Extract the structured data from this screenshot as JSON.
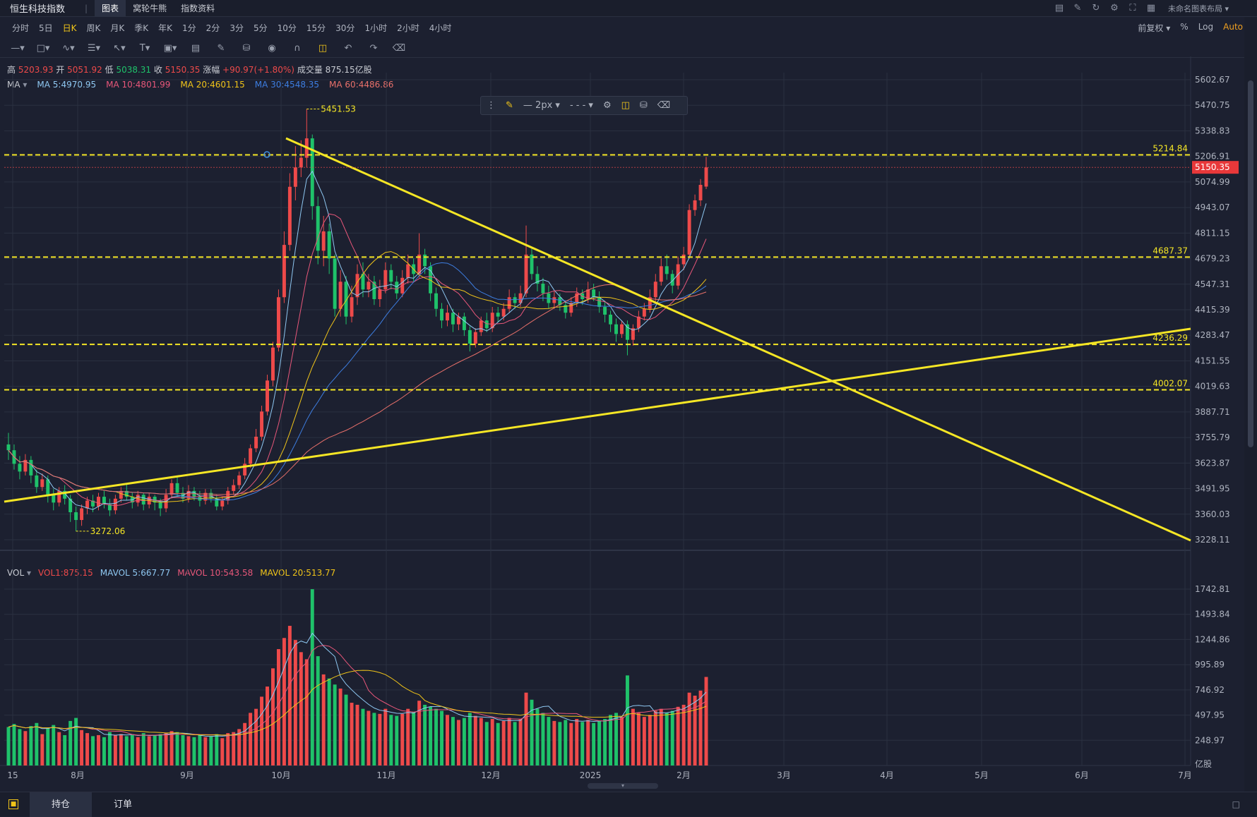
{
  "header": {
    "title": "恒生科技指数",
    "tabs": [
      "图表",
      "窝轮牛熊",
      "指数资料"
    ],
    "active_tab": 0,
    "layout_label": "未命名图表布局",
    "icons": [
      "chart-icon",
      "edit-icon",
      "refresh-icon",
      "settings-icon",
      "fullscreen-icon",
      "grid-icon"
    ]
  },
  "periods": {
    "items": [
      "分时",
      "5日",
      "日K",
      "周K",
      "月K",
      "季K",
      "年K",
      "1分",
      "2分",
      "3分",
      "5分",
      "10分",
      "15分",
      "30分",
      "1小时",
      "2小时",
      "4小时"
    ],
    "active": 2,
    "adjust": "前复权",
    "pct": "%",
    "log": "Log",
    "auto": "Auto"
  },
  "ohlc": {
    "high_label": "高",
    "high": "5203.93",
    "open_label": "开",
    "open": "5051.92",
    "low_label": "低",
    "low": "5038.31",
    "close_label": "收",
    "close": "5150.35",
    "change_label": "涨幅",
    "change": "+90.97(+1.80%)",
    "vol_label": "成交量",
    "vol": "875.15亿股"
  },
  "ma_line": {
    "label": "MA",
    "items": [
      {
        "text": "MA 5:4970.95",
        "color": "#8fc8f2"
      },
      {
        "text": "MA 10:4801.99",
        "color": "#e8577a"
      },
      {
        "text": "MA 20:4601.15",
        "color": "#f0c419"
      },
      {
        "text": "MA 30:4548.35",
        "color": "#3d7de0"
      },
      {
        "text": "MA 60:4486.86",
        "color": "#e8706a"
      }
    ]
  },
  "vol_line": {
    "label": "VOL",
    "items": [
      {
        "text": "VOL1:875.15",
        "color": "#ee4a4a"
      },
      {
        "text": "MAVOL 5:667.77",
        "color": "#8fc8f2"
      },
      {
        "text": "MAVOL 10:543.58",
        "color": "#e8577a"
      },
      {
        "text": "MAVOL 20:513.77",
        "color": "#f0c419"
      }
    ]
  },
  "draw_toolbar": {
    "width_label": "2px"
  },
  "price_axis": [
    "5602.67",
    "5470.75",
    "5338.83",
    "5206.91",
    "5074.99",
    "4943.07",
    "4811.15",
    "4679.23",
    "4547.31",
    "4415.39",
    "4283.47",
    "4151.55",
    "4019.63",
    "3887.71",
    "3755.79",
    "3623.87",
    "3491.95",
    "3360.03",
    "3228.11"
  ],
  "vol_axis": [
    "1742.81",
    "1493.84",
    "1244.86",
    "995.89",
    "746.92",
    "497.95",
    "248.97"
  ],
  "vol_unit": "亿股",
  "time_axis": [
    "15",
    "8月",
    "9月",
    "10月",
    "11月",
    "12月",
    "2025",
    "2月",
    "3月",
    "4月",
    "5月",
    "6月",
    "7月"
  ],
  "current_price": "5150.35",
  "horizontal_lines": [
    {
      "label": "5214.84",
      "value": 5214.84
    },
    {
      "label": "4687.37",
      "value": 4687.37
    },
    {
      "label": "4236.29",
      "value": 4236.29
    },
    {
      "label": "4002.07",
      "value": 4002.07
    }
  ],
  "annotations": {
    "high_mark": "5451.53",
    "low_mark": "3272.06"
  },
  "colors": {
    "up": "#ee4a4a",
    "down": "#1fc26a",
    "drawing": "#f5e625",
    "bg": "#1c2030",
    "grid": "#2a3040"
  },
  "bottom": {
    "tabs": [
      "持仓",
      "订单"
    ],
    "active": 0
  },
  "chart_data": {
    "type": "line",
    "title": "恒生科技指数",
    "price_range": [
      3228.11,
      5602.67
    ],
    "volume_range": [
      0,
      1742.81
    ],
    "series": [
      {
        "name": "MA 5",
        "last": 4970.95
      },
      {
        "name": "MA 10",
        "last": 4801.99
      },
      {
        "name": "MA 20",
        "last": 4601.15
      },
      {
        "name": "MA 30",
        "last": 4548.35
      },
      {
        "name": "MA 60",
        "last": 4486.86
      }
    ],
    "candles": [
      {
        "o": 3720,
        "c": 3690,
        "h": 3780,
        "l": 3640,
        "v": 380
      },
      {
        "o": 3690,
        "c": 3620,
        "h": 3720,
        "l": 3590,
        "v": 410
      },
      {
        "o": 3620,
        "c": 3580,
        "h": 3660,
        "l": 3540,
        "v": 360
      },
      {
        "o": 3580,
        "c": 3640,
        "h": 3670,
        "l": 3560,
        "v": 340
      },
      {
        "o": 3640,
        "c": 3560,
        "h": 3660,
        "l": 3520,
        "v": 390
      },
      {
        "o": 3560,
        "c": 3500,
        "h": 3590,
        "l": 3470,
        "v": 420
      },
      {
        "o": 3500,
        "c": 3540,
        "h": 3570,
        "l": 3480,
        "v": 310
      },
      {
        "o": 3540,
        "c": 3460,
        "h": 3560,
        "l": 3420,
        "v": 370
      },
      {
        "o": 3460,
        "c": 3420,
        "h": 3490,
        "l": 3380,
        "v": 400
      },
      {
        "o": 3420,
        "c": 3480,
        "h": 3500,
        "l": 3400,
        "v": 330
      },
      {
        "o": 3480,
        "c": 3440,
        "h": 3510,
        "l": 3410,
        "v": 300
      },
      {
        "o": 3440,
        "c": 3370,
        "h": 3460,
        "l": 3320,
        "v": 440
      },
      {
        "o": 3370,
        "c": 3330,
        "h": 3400,
        "l": 3272,
        "v": 470
      },
      {
        "o": 3330,
        "c": 3390,
        "h": 3410,
        "l": 3300,
        "v": 350
      },
      {
        "o": 3390,
        "c": 3430,
        "h": 3450,
        "l": 3360,
        "v": 320
      },
      {
        "o": 3430,
        "c": 3400,
        "h": 3460,
        "l": 3370,
        "v": 290
      },
      {
        "o": 3400,
        "c": 3450,
        "h": 3470,
        "l": 3380,
        "v": 300
      },
      {
        "o": 3450,
        "c": 3410,
        "h": 3480,
        "l": 3390,
        "v": 280
      },
      {
        "o": 3410,
        "c": 3380,
        "h": 3440,
        "l": 3350,
        "v": 330
      },
      {
        "o": 3380,
        "c": 3440,
        "h": 3460,
        "l": 3360,
        "v": 300
      },
      {
        "o": 3440,
        "c": 3480,
        "h": 3500,
        "l": 3420,
        "v": 310
      },
      {
        "o": 3480,
        "c": 3450,
        "h": 3520,
        "l": 3430,
        "v": 290
      },
      {
        "o": 3450,
        "c": 3420,
        "h": 3470,
        "l": 3390,
        "v": 300
      },
      {
        "o": 3420,
        "c": 3460,
        "h": 3480,
        "l": 3400,
        "v": 280
      },
      {
        "o": 3460,
        "c": 3410,
        "h": 3470,
        "l": 3380,
        "v": 320
      },
      {
        "o": 3410,
        "c": 3450,
        "h": 3470,
        "l": 3390,
        "v": 290
      },
      {
        "o": 3450,
        "c": 3420,
        "h": 3460,
        "l": 3380,
        "v": 300
      },
      {
        "o": 3420,
        "c": 3390,
        "h": 3440,
        "l": 3350,
        "v": 310
      },
      {
        "o": 3390,
        "c": 3460,
        "h": 3490,
        "l": 3370,
        "v": 320
      },
      {
        "o": 3460,
        "c": 3520,
        "h": 3540,
        "l": 3440,
        "v": 340
      },
      {
        "o": 3520,
        "c": 3470,
        "h": 3550,
        "l": 3450,
        "v": 330
      },
      {
        "o": 3470,
        "c": 3440,
        "h": 3500,
        "l": 3420,
        "v": 300
      },
      {
        "o": 3440,
        "c": 3480,
        "h": 3510,
        "l": 3420,
        "v": 290
      },
      {
        "o": 3480,
        "c": 3450,
        "h": 3500,
        "l": 3430,
        "v": 280
      },
      {
        "o": 3450,
        "c": 3430,
        "h": 3480,
        "l": 3400,
        "v": 300
      },
      {
        "o": 3430,
        "c": 3470,
        "h": 3490,
        "l": 3410,
        "v": 280
      },
      {
        "o": 3470,
        "c": 3440,
        "h": 3490,
        "l": 3420,
        "v": 290
      },
      {
        "o": 3440,
        "c": 3400,
        "h": 3460,
        "l": 3380,
        "v": 310
      },
      {
        "o": 3400,
        "c": 3430,
        "h": 3450,
        "l": 3380,
        "v": 270
      },
      {
        "o": 3430,
        "c": 3480,
        "h": 3500,
        "l": 3410,
        "v": 320
      },
      {
        "o": 3480,
        "c": 3510,
        "h": 3540,
        "l": 3460,
        "v": 330
      },
      {
        "o": 3510,
        "c": 3560,
        "h": 3580,
        "l": 3490,
        "v": 360
      },
      {
        "o": 3560,
        "c": 3620,
        "h": 3650,
        "l": 3540,
        "v": 420
      },
      {
        "o": 3620,
        "c": 3700,
        "h": 3720,
        "l": 3600,
        "v": 520
      },
      {
        "o": 3700,
        "c": 3760,
        "h": 3800,
        "l": 3680,
        "v": 560
      },
      {
        "o": 3760,
        "c": 3890,
        "h": 3920,
        "l": 3740,
        "v": 680
      },
      {
        "o": 3890,
        "c": 4050,
        "h": 4080,
        "l": 3870,
        "v": 780
      },
      {
        "o": 4050,
        "c": 4220,
        "h": 4250,
        "l": 4020,
        "v": 960
      },
      {
        "o": 4220,
        "c": 4480,
        "h": 4520,
        "l": 4200,
        "v": 1150
      },
      {
        "o": 4480,
        "c": 4750,
        "h": 4820,
        "l": 4450,
        "v": 1260
      },
      {
        "o": 4750,
        "c": 5050,
        "h": 5120,
        "l": 4720,
        "v": 1380
      },
      {
        "o": 5050,
        "c": 5150,
        "h": 5260,
        "l": 4980,
        "v": 1240
      },
      {
        "o": 5150,
        "c": 5200,
        "h": 5290,
        "l": 5100,
        "v": 1120
      },
      {
        "o": 5200,
        "c": 5300,
        "h": 5451,
        "l": 5150,
        "v": 1050
      },
      {
        "o": 5300,
        "c": 4950,
        "h": 5320,
        "l": 4880,
        "v": 1742
      },
      {
        "o": 4950,
        "c": 4720,
        "h": 5000,
        "l": 4650,
        "v": 1080
      },
      {
        "o": 4720,
        "c": 4820,
        "h": 4900,
        "l": 4640,
        "v": 900
      },
      {
        "o": 4820,
        "c": 4680,
        "h": 4860,
        "l": 4600,
        "v": 860
      },
      {
        "o": 4680,
        "c": 4420,
        "h": 4700,
        "l": 4380,
        "v": 800
      },
      {
        "o": 4420,
        "c": 4560,
        "h": 4620,
        "l": 4380,
        "v": 760
      },
      {
        "o": 4560,
        "c": 4380,
        "h": 4590,
        "l": 4340,
        "v": 700
      },
      {
        "o": 4380,
        "c": 4480,
        "h": 4540,
        "l": 4350,
        "v": 620
      },
      {
        "o": 4480,
        "c": 4600,
        "h": 4650,
        "l": 4440,
        "v": 600
      },
      {
        "o": 4600,
        "c": 4520,
        "h": 4660,
        "l": 4480,
        "v": 560
      },
      {
        "o": 4520,
        "c": 4560,
        "h": 4600,
        "l": 4480,
        "v": 540
      },
      {
        "o": 4560,
        "c": 4470,
        "h": 4590,
        "l": 4440,
        "v": 520
      },
      {
        "o": 4470,
        "c": 4520,
        "h": 4570,
        "l": 4430,
        "v": 510
      },
      {
        "o": 4520,
        "c": 4620,
        "h": 4660,
        "l": 4500,
        "v": 560
      },
      {
        "o": 4620,
        "c": 4560,
        "h": 4650,
        "l": 4520,
        "v": 500
      },
      {
        "o": 4560,
        "c": 4500,
        "h": 4590,
        "l": 4470,
        "v": 490
      },
      {
        "o": 4500,
        "c": 4580,
        "h": 4620,
        "l": 4480,
        "v": 510
      },
      {
        "o": 4580,
        "c": 4650,
        "h": 4700,
        "l": 4550,
        "v": 560
      },
      {
        "o": 4650,
        "c": 4600,
        "h": 4680,
        "l": 4560,
        "v": 530
      },
      {
        "o": 4600,
        "c": 4700,
        "h": 4810,
        "l": 4580,
        "v": 640
      },
      {
        "o": 4700,
        "c": 4640,
        "h": 4730,
        "l": 4600,
        "v": 600
      },
      {
        "o": 4640,
        "c": 4500,
        "h": 4660,
        "l": 4460,
        "v": 580
      },
      {
        "o": 4500,
        "c": 4420,
        "h": 4530,
        "l": 4380,
        "v": 560
      },
      {
        "o": 4420,
        "c": 4360,
        "h": 4450,
        "l": 4320,
        "v": 540
      },
      {
        "o": 4360,
        "c": 4400,
        "h": 4440,
        "l": 4330,
        "v": 500
      },
      {
        "o": 4400,
        "c": 4340,
        "h": 4420,
        "l": 4300,
        "v": 480
      },
      {
        "o": 4340,
        "c": 4380,
        "h": 4400,
        "l": 4310,
        "v": 450
      },
      {
        "o": 4380,
        "c": 4310,
        "h": 4400,
        "l": 4280,
        "v": 470
      },
      {
        "o": 4310,
        "c": 4240,
        "h": 4330,
        "l": 4200,
        "v": 520
      },
      {
        "o": 4240,
        "c": 4300,
        "h": 4320,
        "l": 4220,
        "v": 490
      },
      {
        "o": 4300,
        "c": 4360,
        "h": 4380,
        "l": 4280,
        "v": 470
      },
      {
        "o": 4360,
        "c": 4320,
        "h": 4400,
        "l": 4300,
        "v": 430
      },
      {
        "o": 4320,
        "c": 4400,
        "h": 4430,
        "l": 4300,
        "v": 460
      },
      {
        "o": 4400,
        "c": 4380,
        "h": 4430,
        "l": 4350,
        "v": 420
      },
      {
        "o": 4380,
        "c": 4420,
        "h": 4450,
        "l": 4360,
        "v": 440
      },
      {
        "o": 4420,
        "c": 4480,
        "h": 4520,
        "l": 4400,
        "v": 470
      },
      {
        "o": 4480,
        "c": 4450,
        "h": 4500,
        "l": 4420,
        "v": 430
      },
      {
        "o": 4450,
        "c": 4500,
        "h": 4540,
        "l": 4430,
        "v": 460
      },
      {
        "o": 4500,
        "c": 4700,
        "h": 4850,
        "l": 4480,
        "v": 720
      },
      {
        "o": 4700,
        "c": 4600,
        "h": 4730,
        "l": 4570,
        "v": 650
      },
      {
        "o": 4600,
        "c": 4550,
        "h": 4640,
        "l": 4510,
        "v": 560
      },
      {
        "o": 4550,
        "c": 4500,
        "h": 4580,
        "l": 4460,
        "v": 520
      },
      {
        "o": 4500,
        "c": 4450,
        "h": 4540,
        "l": 4420,
        "v": 480
      },
      {
        "o": 4450,
        "c": 4480,
        "h": 4510,
        "l": 4420,
        "v": 440
      },
      {
        "o": 4480,
        "c": 4440,
        "h": 4500,
        "l": 4410,
        "v": 430
      },
      {
        "o": 4440,
        "c": 4400,
        "h": 4460,
        "l": 4370,
        "v": 450
      },
      {
        "o": 4400,
        "c": 4450,
        "h": 4480,
        "l": 4380,
        "v": 420
      },
      {
        "o": 4450,
        "c": 4500,
        "h": 4530,
        "l": 4430,
        "v": 460
      },
      {
        "o": 4500,
        "c": 4470,
        "h": 4520,
        "l": 4440,
        "v": 430
      },
      {
        "o": 4470,
        "c": 4520,
        "h": 4560,
        "l": 4450,
        "v": 450
      },
      {
        "o": 4520,
        "c": 4480,
        "h": 4550,
        "l": 4460,
        "v": 420
      },
      {
        "o": 4480,
        "c": 4430,
        "h": 4510,
        "l": 4400,
        "v": 440
      },
      {
        "o": 4430,
        "c": 4390,
        "h": 4460,
        "l": 4350,
        "v": 460
      },
      {
        "o": 4390,
        "c": 4340,
        "h": 4410,
        "l": 4300,
        "v": 500
      },
      {
        "o": 4340,
        "c": 4290,
        "h": 4370,
        "l": 4250,
        "v": 520
      },
      {
        "o": 4290,
        "c": 4340,
        "h": 4360,
        "l": 4270,
        "v": 480
      },
      {
        "o": 4340,
        "c": 4260,
        "h": 4360,
        "l": 4180,
        "v": 890
      },
      {
        "o": 4260,
        "c": 4320,
        "h": 4340,
        "l": 4230,
        "v": 560
      },
      {
        "o": 4320,
        "c": 4380,
        "h": 4410,
        "l": 4300,
        "v": 520
      },
      {
        "o": 4380,
        "c": 4420,
        "h": 4450,
        "l": 4360,
        "v": 480
      },
      {
        "o": 4420,
        "c": 4480,
        "h": 4520,
        "l": 4400,
        "v": 500
      },
      {
        "o": 4480,
        "c": 4560,
        "h": 4600,
        "l": 4460,
        "v": 540
      },
      {
        "o": 4560,
        "c": 4640,
        "h": 4680,
        "l": 4540,
        "v": 560
      },
      {
        "o": 4640,
        "c": 4600,
        "h": 4700,
        "l": 4570,
        "v": 520
      },
      {
        "o": 4600,
        "c": 4540,
        "h": 4620,
        "l": 4500,
        "v": 540
      },
      {
        "o": 4540,
        "c": 4650,
        "h": 4690,
        "l": 4520,
        "v": 580
      },
      {
        "o": 4650,
        "c": 4700,
        "h": 4740,
        "l": 4620,
        "v": 600
      },
      {
        "o": 4700,
        "c": 4930,
        "h": 4960,
        "l": 4680,
        "v": 720
      },
      {
        "o": 4930,
        "c": 4980,
        "h": 5010,
        "l": 4900,
        "v": 690
      },
      {
        "o": 4980,
        "c": 5060,
        "h": 5090,
        "l": 4950,
        "v": 740
      },
      {
        "o": 5051,
        "c": 5150,
        "h": 5204,
        "l": 5038,
        "v": 875
      }
    ]
  }
}
